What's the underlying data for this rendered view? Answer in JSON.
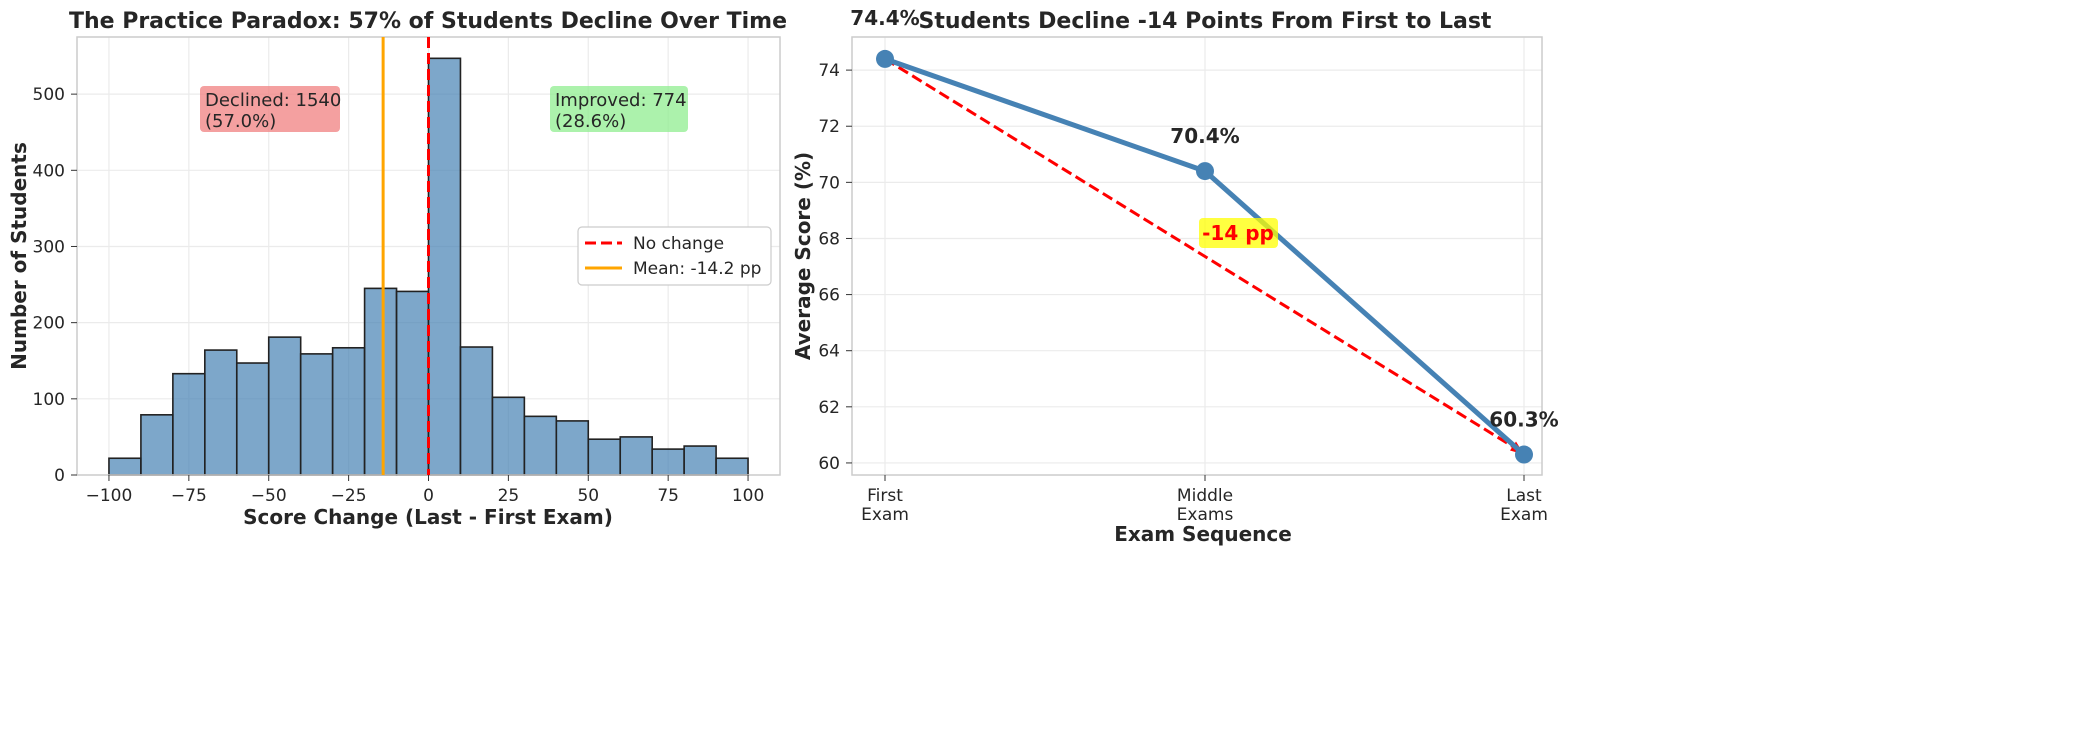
{
  "chart_data": [
    {
      "type": "bar",
      "title": "The Practice Paradox: 57% of Students Decline Over Time",
      "xlabel": "Score Change (Last - First Exam)",
      "ylabel": "Number of Students",
      "bin_edges": [
        -100,
        -90,
        -80,
        -70,
        -60,
        -50,
        -40,
        -30,
        -20,
        -10,
        0,
        10,
        20,
        30,
        40,
        50,
        60,
        70,
        80,
        90,
        100
      ],
      "values": [
        22,
        79,
        133,
        164,
        147,
        181,
        159,
        167,
        245,
        241,
        547,
        168,
        102,
        77,
        71,
        47,
        50,
        34,
        38,
        22
      ],
      "xlim": [
        -110,
        110
      ],
      "ylim": [
        0,
        575
      ],
      "xticks": [
        -100,
        -75,
        -50,
        -25,
        0,
        25,
        50,
        75,
        100
      ],
      "xtick_labels": [
        "−100",
        "−75",
        "−50",
        "−25",
        "0",
        "25",
        "50",
        "75",
        "100"
      ],
      "yticks": [
        0,
        100,
        200,
        300,
        400,
        500
      ],
      "grid": true,
      "bar_color": "#4682b4",
      "vlines": [
        {
          "name": "No change",
          "x": 0,
          "color": "#ff0000",
          "style": "dashed"
        },
        {
          "name": "Mean: -14.2 pp",
          "x": -14.2,
          "color": "#ffa500",
          "style": "solid"
        }
      ],
      "legend": {
        "placement": "center-right",
        "entries": [
          "No change",
          "Mean: -14.2 pp"
        ]
      },
      "annotations": [
        {
          "lines": [
            "Declined: 1540",
            "(57.0%)"
          ],
          "color": "#f08080"
        },
        {
          "lines": [
            "Improved: 774",
            "(28.6%)"
          ],
          "color": "#90ee90"
        }
      ]
    },
    {
      "type": "line",
      "title": "Students Decline -14 Points From First to Last",
      "xlabel": "Exam Sequence",
      "ylabel": "Average Score (%)",
      "categories": [
        [
          "First",
          "Exam"
        ],
        [
          "Middle",
          "Exams"
        ],
        [
          "Last",
          "Exam"
        ]
      ],
      "values": [
        74.4,
        70.4,
        60.3
      ],
      "point_labels": [
        "74.4%",
        "70.4%",
        "60.3%"
      ],
      "ylim": [
        59.57,
        75.18
      ],
      "yticks": [
        60,
        62,
        64,
        66,
        68,
        70,
        72,
        74
      ],
      "grid": true,
      "line_color": "#4682b4",
      "trend_arrow": {
        "from": 74.4,
        "to": 60.3,
        "color": "#ff0000",
        "style": "dashed"
      },
      "annotation": {
        "text": "-14 pp",
        "color": "#ff0000",
        "background": "#ffff00"
      }
    }
  ]
}
